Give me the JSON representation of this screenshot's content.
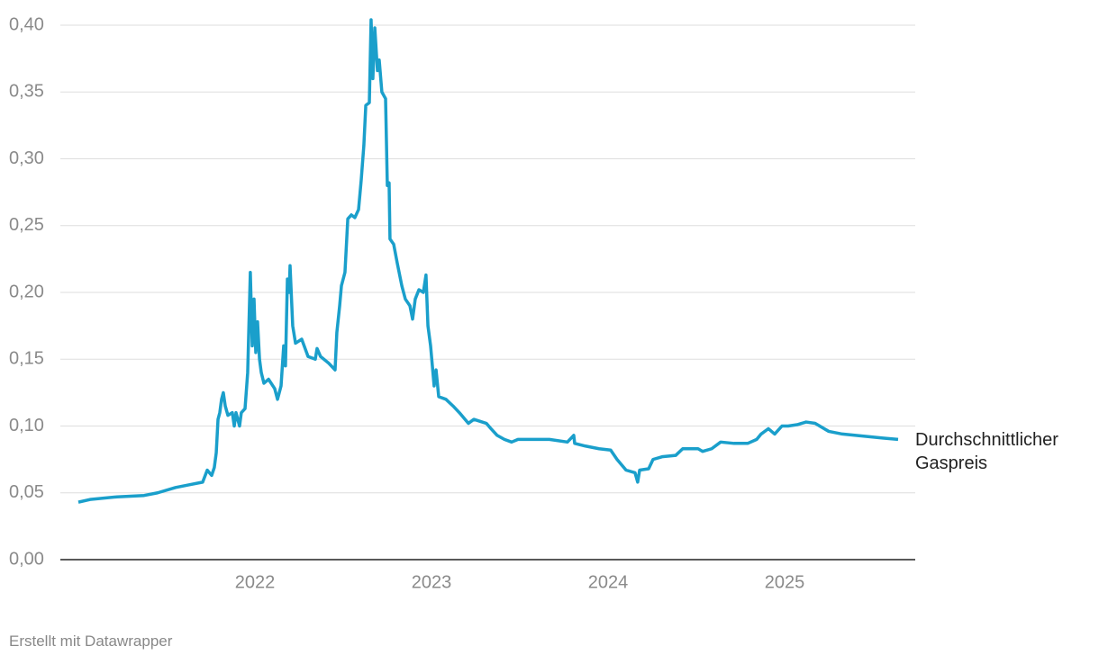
{
  "chart_data": {
    "type": "line",
    "x": [
      2021.0,
      2021.066,
      2021.219,
      2021.372,
      2021.449,
      2021.551,
      2021.628,
      2021.704,
      2021.73,
      2021.755,
      2021.77,
      2021.781,
      2021.791,
      2021.801,
      2021.811,
      2021.821,
      2021.832,
      2021.847,
      2021.872,
      2021.883,
      2021.893,
      2021.913,
      2021.923,
      2021.944,
      2021.959,
      2021.974,
      2021.985,
      2021.995,
      2022.005,
      2022.015,
      2022.026,
      2022.036,
      2022.051,
      2022.077,
      2022.112,
      2022.128,
      2022.148,
      2022.163,
      2022.173,
      2022.184,
      2022.194,
      2022.199,
      2022.214,
      2022.23,
      2022.265,
      2022.301,
      2022.342,
      2022.352,
      2022.372,
      2022.418,
      2022.454,
      2022.464,
      2022.48,
      2022.49,
      2022.51,
      2022.526,
      2022.546,
      2022.566,
      2022.587,
      2022.602,
      2022.617,
      2022.628,
      2022.648,
      2022.658,
      2022.668,
      2022.679,
      2022.694,
      2022.704,
      2022.719,
      2022.74,
      2022.75,
      2022.76,
      2022.765,
      2022.786,
      2022.806,
      2022.832,
      2022.852,
      2022.878,
      2022.893,
      2022.908,
      2022.929,
      2022.954,
      2022.969,
      2022.98,
      2022.995,
      2023.005,
      2023.015,
      2023.026,
      2023.041,
      2023.082,
      2023.122,
      2023.158,
      2023.209,
      2023.24,
      2023.311,
      2023.337,
      2023.372,
      2023.413,
      2023.454,
      2023.49,
      2023.566,
      2023.668,
      2023.77,
      2023.806,
      2023.811,
      2023.872,
      2023.949,
      2024.015,
      2024.051,
      2024.102,
      2024.153,
      2024.168,
      2024.179,
      2024.23,
      2024.255,
      2024.306,
      2024.383,
      2024.423,
      2024.51,
      2024.536,
      2024.587,
      2024.638,
      2024.714,
      2024.791,
      2024.842,
      2024.867,
      2024.908,
      2024.944,
      2024.985,
      2025.02,
      2025.071,
      2025.122,
      2025.173,
      2025.25,
      2025.327,
      2025.403,
      2025.48,
      2025.556,
      2025.643
    ],
    "series": [
      {
        "name": "Durchschnittlicher Gaspreis",
        "color": "#1a9fcb",
        "values": [
          0.043,
          0.045,
          0.047,
          0.048,
          0.05,
          0.054,
          0.056,
          0.058,
          0.067,
          0.063,
          0.069,
          0.08,
          0.105,
          0.11,
          0.12,
          0.125,
          0.115,
          0.108,
          0.11,
          0.1,
          0.11,
          0.1,
          0.11,
          0.113,
          0.14,
          0.215,
          0.16,
          0.195,
          0.155,
          0.178,
          0.15,
          0.14,
          0.132,
          0.135,
          0.128,
          0.12,
          0.13,
          0.16,
          0.145,
          0.21,
          0.2,
          0.22,
          0.175,
          0.162,
          0.165,
          0.152,
          0.15,
          0.158,
          0.152,
          0.147,
          0.142,
          0.17,
          0.19,
          0.205,
          0.215,
          0.255,
          0.258,
          0.256,
          0.262,
          0.284,
          0.31,
          0.34,
          0.342,
          0.404,
          0.36,
          0.398,
          0.366,
          0.374,
          0.35,
          0.345,
          0.28,
          0.282,
          0.24,
          0.236,
          0.222,
          0.205,
          0.195,
          0.19,
          0.18,
          0.195,
          0.202,
          0.2,
          0.213,
          0.175,
          0.16,
          0.145,
          0.13,
          0.142,
          0.122,
          0.12,
          0.115,
          0.11,
          0.102,
          0.105,
          0.102,
          0.098,
          0.093,
          0.09,
          0.088,
          0.09,
          0.09,
          0.09,
          0.088,
          0.093,
          0.087,
          0.085,
          0.083,
          0.082,
          0.075,
          0.067,
          0.065,
          0.058,
          0.067,
          0.068,
          0.075,
          0.077,
          0.078,
          0.083,
          0.083,
          0.081,
          0.083,
          0.088,
          0.087,
          0.087,
          0.09,
          0.094,
          0.098,
          0.094,
          0.1,
          0.1,
          0.101,
          0.103,
          0.102,
          0.096,
          0.094,
          0.093,
          0.092,
          0.091,
          0.09
        ]
      }
    ],
    "xlim": [
      2020.898,
      2025.74
    ],
    "xticks": [
      2022,
      2023,
      2024,
      2025
    ],
    "ylim": [
      0,
      0.4
    ],
    "yticks": [
      {
        "value": 0,
        "label": "0,00"
      },
      {
        "value": 0.05,
        "label": "0,05"
      },
      {
        "value": 0.1,
        "label": "0,10"
      },
      {
        "value": 0.15,
        "label": "0,15"
      },
      {
        "value": 0.2,
        "label": "0,20"
      },
      {
        "value": 0.25,
        "label": "0,25"
      },
      {
        "value": 0.3,
        "label": "0,30"
      },
      {
        "value": 0.35,
        "label": "0,35"
      },
      {
        "value": 0.4,
        "label": "0,40"
      }
    ],
    "grid": true,
    "note": "Erstellt mit Datawrapper"
  }
}
